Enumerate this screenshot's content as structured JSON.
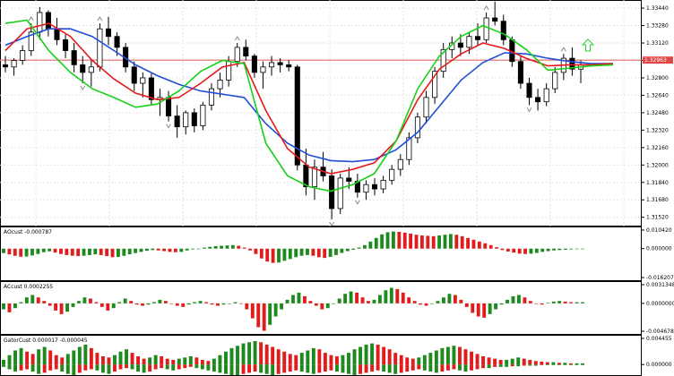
{
  "colors": {
    "background": "#ffffff",
    "grid": "#e6e6e6",
    "axis": "#000000",
    "bull_candle": "#ffffff",
    "bear_candle": "#000000",
    "alligator_jaw": "#1f4fd8",
    "alligator_teeth": "#e61a1a",
    "alligator_lips": "#19d019",
    "price_line": "#e05a5a",
    "price_tag": "#e04848",
    "fractal": "#8a8a8a",
    "signal_arrow": "#2bcf2b",
    "osc_up": "#1d8a1d",
    "osc_down": "#e01c1c"
  },
  "chart_data": [
    {
      "type": "candlestick",
      "price_axis_ticks": [
        "1.33440",
        "1.33280",
        "1.33120",
        "1.32960",
        "1.32800",
        "1.32640",
        "1.32480",
        "1.32320",
        "1.32160",
        "1.32000",
        "1.31840",
        "1.31680",
        "1.31520"
      ],
      "ylim": [
        1.3146,
        1.3349
      ],
      "current_price": "1.32963",
      "current_price_value": 1.32963,
      "grid": true,
      "indicators": [
        "Alligator jaw",
        "Alligator teeth",
        "Alligator lips",
        "Fractals"
      ],
      "candles": [
        [
          1.3292,
          1.33,
          1.3285,
          1.329
        ],
        [
          1.329,
          1.3298,
          1.3282,
          1.3296
        ],
        [
          1.3296,
          1.331,
          1.3292,
          1.3305
        ],
        [
          1.3305,
          1.333,
          1.33,
          1.3322
        ],
        [
          1.3322,
          1.3345,
          1.3315,
          1.334
        ],
        [
          1.334,
          1.3342,
          1.3318,
          1.3325
        ],
        [
          1.3325,
          1.3335,
          1.331,
          1.3315
        ],
        [
          1.3315,
          1.332,
          1.3298,
          1.3305
        ],
        [
          1.3305,
          1.3312,
          1.3285,
          1.3292
        ],
        [
          1.3292,
          1.33,
          1.3275,
          1.3285
        ],
        [
          1.3285,
          1.3296,
          1.3272,
          1.329
        ],
        [
          1.329,
          1.333,
          1.3286,
          1.3325
        ],
        [
          1.3325,
          1.3336,
          1.331,
          1.3318
        ],
        [
          1.3318,
          1.3322,
          1.33,
          1.3308
        ],
        [
          1.3308,
          1.3312,
          1.3285,
          1.329
        ],
        [
          1.329,
          1.3295,
          1.3268,
          1.3275
        ],
        [
          1.3275,
          1.3285,
          1.3262,
          1.328
        ],
        [
          1.328,
          1.3284,
          1.3255,
          1.326
        ],
        [
          1.326,
          1.327,
          1.3245,
          1.3262
        ],
        [
          1.3262,
          1.3268,
          1.324,
          1.3245
        ],
        [
          1.3245,
          1.3255,
          1.3225,
          1.3235
        ],
        [
          1.3235,
          1.325,
          1.3228,
          1.3248
        ],
        [
          1.3248,
          1.3252,
          1.323,
          1.3236
        ],
        [
          1.3236,
          1.3258,
          1.3232,
          1.3255
        ],
        [
          1.3255,
          1.3275,
          1.325,
          1.327
        ],
        [
          1.327,
          1.3285,
          1.3262,
          1.3278
        ],
        [
          1.3278,
          1.33,
          1.3272,
          1.3295
        ],
        [
          1.3295,
          1.3312,
          1.329,
          1.3308
        ],
        [
          1.3308,
          1.3315,
          1.3296,
          1.33
        ],
        [
          1.33,
          1.3302,
          1.328,
          1.3285
        ],
        [
          1.3285,
          1.3295,
          1.327,
          1.329
        ],
        [
          1.329,
          1.33,
          1.3282,
          1.3294
        ],
        [
          1.3294,
          1.3298,
          1.3285,
          1.3292
        ],
        [
          1.3292,
          1.3296,
          1.3286,
          1.329
        ],
        [
          1.329,
          1.3292,
          1.3195,
          1.32
        ],
        [
          1.32,
          1.3215,
          1.3172,
          1.318
        ],
        [
          1.318,
          1.3205,
          1.3168,
          1.3198
        ],
        [
          1.3198,
          1.3212,
          1.3185,
          1.319
        ],
        [
          1.319,
          1.3196,
          1.315,
          1.316
        ],
        [
          1.316,
          1.3192,
          1.3155,
          1.3188
        ],
        [
          1.3188,
          1.3198,
          1.3178,
          1.3185
        ],
        [
          1.3185,
          1.3192,
          1.317,
          1.3175
        ],
        [
          1.3175,
          1.3186,
          1.3168,
          1.3182
        ],
        [
          1.3182,
          1.3188,
          1.3172,
          1.3178
        ],
        [
          1.3178,
          1.319,
          1.3174,
          1.3186
        ],
        [
          1.3186,
          1.32,
          1.3182,
          1.3196
        ],
        [
          1.3196,
          1.321,
          1.319,
          1.3205
        ],
        [
          1.3205,
          1.323,
          1.32,
          1.3225
        ],
        [
          1.3225,
          1.3248,
          1.322,
          1.3244
        ],
        [
          1.3244,
          1.3268,
          1.3238,
          1.3262
        ],
        [
          1.3262,
          1.329,
          1.3256,
          1.3286
        ],
        [
          1.3286,
          1.3312,
          1.328,
          1.3306
        ],
        [
          1.3306,
          1.3318,
          1.3298,
          1.3312
        ],
        [
          1.3312,
          1.332,
          1.33,
          1.3308
        ],
        [
          1.3308,
          1.3322,
          1.3302,
          1.3318
        ],
        [
          1.3318,
          1.333,
          1.331,
          1.3315
        ],
        [
          1.3315,
          1.334,
          1.3312,
          1.3335
        ],
        [
          1.3335,
          1.335,
          1.3328,
          1.3332
        ],
        [
          1.3332,
          1.3338,
          1.331,
          1.3315
        ],
        [
          1.3315,
          1.3318,
          1.329,
          1.3295
        ],
        [
          1.3295,
          1.33,
          1.327,
          1.3275
        ],
        [
          1.3275,
          1.328,
          1.3255,
          1.3262
        ],
        [
          1.3262,
          1.327,
          1.325,
          1.3258
        ],
        [
          1.3258,
          1.3275,
          1.3254,
          1.327
        ],
        [
          1.327,
          1.329,
          1.3266,
          1.3285
        ],
        [
          1.3285,
          1.3302,
          1.3278,
          1.3298
        ],
        [
          1.3298,
          1.3308,
          1.3282,
          1.3288
        ],
        [
          1.3288,
          1.3296,
          1.3275,
          1.3292
        ]
      ],
      "jaw": [
        1.331,
        1.3318,
        1.3325,
        1.3325,
        1.3318,
        1.3305,
        1.3292,
        1.3282,
        1.3274,
        1.3268,
        1.3265,
        1.3262,
        1.3238,
        1.322,
        1.3209,
        1.3204,
        1.3203,
        1.3205,
        1.3214,
        1.323,
        1.3254,
        1.3278,
        1.3294,
        1.3303,
        1.3302,
        1.3298,
        1.3295,
        1.3293,
        1.3293
      ],
      "teeth": [
        1.3305,
        1.3325,
        1.333,
        1.3318,
        1.3296,
        1.3279,
        1.3266,
        1.326,
        1.3262,
        1.3275,
        1.329,
        1.3294,
        1.325,
        1.3215,
        1.3198,
        1.3192,
        1.3196,
        1.3202,
        1.3222,
        1.326,
        1.3288,
        1.3302,
        1.3312,
        1.3307,
        1.3298,
        1.3291,
        1.3292,
        1.3292,
        1.3293
      ],
      "lips": [
        1.333,
        1.3333,
        1.3305,
        1.3285,
        1.327,
        1.3262,
        1.3253,
        1.3256,
        1.3268,
        1.3286,
        1.3296,
        1.3293,
        1.322,
        1.319,
        1.318,
        1.3176,
        1.3182,
        1.3192,
        1.3222,
        1.327,
        1.33,
        1.3318,
        1.3328,
        1.332,
        1.3306,
        1.3287,
        1.3289,
        1.3291,
        1.3292
      ],
      "fractal_up_at": [
        3,
        11,
        27,
        56,
        65
      ],
      "fractal_down_at": [
        9,
        19,
        38,
        41,
        61
      ]
    },
    {
      "type": "bar",
      "title": "AOcust -0.000787",
      "axis_ticks": [
        "0.010420",
        "0.000000",
        "-0.016207"
      ],
      "ylim": [
        -0.016207,
        0.01042
      ],
      "values": [
        -0.0025,
        -0.0032,
        -0.004,
        -0.0045,
        -0.0044,
        -0.0038,
        -0.003,
        -0.002,
        -0.0015,
        -0.0022,
        -0.003,
        -0.0036,
        -0.004,
        -0.0042,
        -0.004,
        -0.0036,
        -0.0032,
        -0.0036,
        -0.0042,
        -0.0048,
        -0.0046,
        -0.004,
        -0.0032,
        -0.0025,
        -0.0018,
        -0.0012,
        -0.0008,
        -0.001,
        -0.0014,
        -0.0018,
        -0.002,
        -0.0018,
        -0.001,
        -0.0004,
        0.0,
        0.0006,
        0.001,
        0.0014,
        0.0016,
        0.0018,
        0.002,
        0.0016,
        0.0006,
        -0.001,
        -0.003,
        -0.0055,
        -0.0072,
        -0.008,
        -0.0078,
        -0.0068,
        -0.0058,
        -0.0048,
        -0.004,
        -0.0036,
        -0.004,
        -0.0048,
        -0.0052,
        -0.0046,
        -0.0036,
        -0.0024,
        -0.0014,
        -0.0006,
        0.0006,
        0.002,
        0.004,
        0.006,
        0.008,
        0.0092,
        0.0096,
        0.0094,
        0.009,
        0.0084,
        0.0078,
        0.0074,
        0.0072,
        0.007,
        0.0074,
        0.0078,
        0.0082,
        0.0078,
        0.007,
        0.006,
        0.005,
        0.004,
        0.003,
        0.002,
        0.0008,
        -0.0008,
        -0.0016,
        -0.0022,
        -0.0028,
        -0.003,
        -0.0028,
        -0.0024,
        -0.0018,
        -0.0014,
        -0.001,
        -0.0008,
        -0.0006,
        -0.0004,
        -0.0002,
        -0.0001
      ]
    },
    {
      "type": "bar",
      "title": "ACcust 0.0002255",
      "axis_ticks": [
        "0.0031348",
        "0.0000000",
        "-0.0046781"
      ],
      "ylim": [
        -0.0046781,
        0.0031348
      ],
      "values": [
        -0.001,
        -0.0015,
        -0.0008,
        0.0002,
        0.001,
        0.0014,
        0.001,
        0.0004,
        -0.0004,
        -0.0012,
        -0.0018,
        -0.0014,
        -0.0006,
        0.0004,
        0.001,
        0.0008,
        0.0002,
        -0.0006,
        -0.0012,
        -0.0008,
        0.0002,
        0.0008,
        0.0004,
        -0.0002,
        -0.0004,
        -0.0002,
        0.0002,
        0.0006,
        0.0004,
        0.0,
        -0.0004,
        -0.0006,
        -0.0002,
        0.0002,
        0.0004,
        0.0002,
        -0.0002,
        -0.0004,
        -0.0002,
        0.0,
        0.0002,
        0.0,
        -0.001,
        -0.0025,
        -0.004,
        -0.0046,
        -0.0036,
        -0.0022,
        -0.001,
        0.0006,
        0.0014,
        0.0018,
        0.0012,
        0.0004,
        -0.0004,
        -0.001,
        -0.0008,
        0.0,
        0.0008,
        0.0016,
        0.002,
        0.0018,
        0.001,
        0.0004,
        0.0006,
        0.0014,
        0.0022,
        0.0026,
        0.0024,
        0.0018,
        0.001,
        0.0004,
        -0.0002,
        -0.0004,
        0.0,
        0.0004,
        0.001,
        0.0016,
        0.0014,
        0.0006,
        -0.0006,
        -0.0016,
        -0.0022,
        -0.0024,
        -0.0018,
        -0.001,
        -0.0002,
        0.0006,
        0.0012,
        0.0014,
        0.001,
        0.0004,
        0.0,
        -0.0002,
        0.0001,
        0.0003,
        0.0004,
        0.0003,
        0.0002,
        0.0002,
        0.0002
      ]
    },
    {
      "type": "bar",
      "title": "GatorCust 0.000017 -0.000045",
      "axis_ticks": [
        "0.004455",
        "0.000000"
      ],
      "ylim": [
        -0.0018,
        0.004455
      ],
      "upper": [
        0.0008,
        0.0016,
        0.0024,
        0.0028,
        0.0022,
        0.0018,
        0.0026,
        0.003,
        0.0024,
        0.0016,
        0.0012,
        0.0018,
        0.0024,
        0.003,
        0.0034,
        0.0028,
        0.002,
        0.0014,
        0.0012,
        0.0016,
        0.0022,
        0.0026,
        0.002,
        0.0014,
        0.001,
        0.0012,
        0.0016,
        0.0014,
        0.001,
        0.0008,
        0.001,
        0.0012,
        0.0014,
        0.0012,
        0.0008,
        0.0006,
        0.001,
        0.0016,
        0.0022,
        0.0028,
        0.0032,
        0.0036,
        0.0038,
        0.004,
        0.0038,
        0.0034,
        0.003,
        0.0026,
        0.0022,
        0.0018,
        0.0016,
        0.002,
        0.0024,
        0.0028,
        0.0026,
        0.002,
        0.0016,
        0.0014,
        0.0016,
        0.002,
        0.0026,
        0.003,
        0.0034,
        0.0036,
        0.0034,
        0.003,
        0.0026,
        0.002,
        0.0016,
        0.0012,
        0.001,
        0.0012,
        0.0016,
        0.002,
        0.0024,
        0.0028,
        0.003,
        0.0032,
        0.003,
        0.0026,
        0.0022,
        0.0018,
        0.0014,
        0.0012,
        0.001,
        0.0008,
        0.0008,
        0.001,
        0.0012,
        0.001,
        0.0008,
        0.0006,
        0.0005,
        0.0004,
        0.0004,
        0.0003,
        0.0003,
        0.0002,
        0.0002,
        0.0002
      ],
      "lower": [
        -0.0004,
        -0.0008,
        -0.0012,
        -0.001,
        -0.0008,
        -0.0012,
        -0.0016,
        -0.0014,
        -0.001,
        -0.0008,
        -0.0012,
        -0.0016,
        -0.0018,
        -0.0014,
        -0.001,
        -0.0008,
        -0.001,
        -0.0014,
        -0.0016,
        -0.0012,
        -0.0008,
        -0.0006,
        -0.0008,
        -0.0012,
        -0.0014,
        -0.0012,
        -0.0008,
        -0.0006,
        -0.0008,
        -0.001,
        -0.0008,
        -0.0006,
        -0.0004,
        -0.0006,
        -0.0008,
        -0.001,
        -0.0012,
        -0.0014,
        -0.0016,
        -0.0018,
        -0.0018,
        -0.0016,
        -0.0014,
        -0.0012,
        -0.0014,
        -0.0016,
        -0.0018,
        -0.0016,
        -0.0014,
        -0.0012,
        -0.001,
        -0.0012,
        -0.0014,
        -0.0016,
        -0.0014,
        -0.0012,
        -0.001,
        -0.0012,
        -0.0014,
        -0.0016,
        -0.0018,
        -0.0016,
        -0.0014,
        -0.0012,
        -0.001,
        -0.0012,
        -0.0014,
        -0.0016,
        -0.0014,
        -0.0012,
        -0.001,
        -0.0008,
        -0.001,
        -0.0012,
        -0.0014,
        -0.0012,
        -0.001,
        -0.0008,
        -0.001,
        -0.0012,
        -0.001,
        -0.0008,
        -0.0006,
        -0.0006,
        -0.0004,
        -0.0004,
        -0.0004,
        -0.0003,
        -0.0003,
        -0.0002,
        -0.0002,
        -0.0002,
        -0.0001,
        -0.0001,
        -0.0001,
        -0.0001,
        -0.0001,
        -0.0001,
        -0.0001,
        -0.0001
      ]
    }
  ]
}
